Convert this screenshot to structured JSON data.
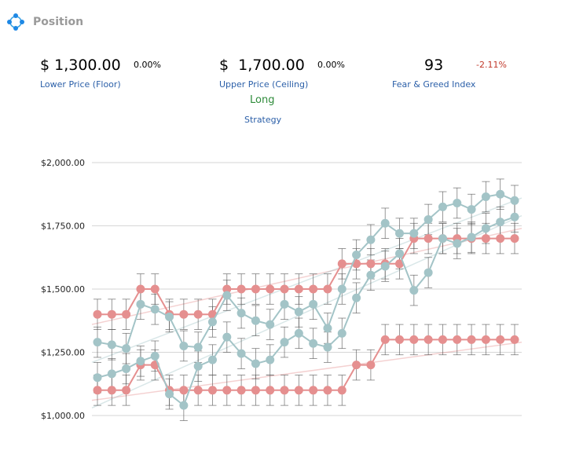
{
  "header": {
    "title": "Position",
    "icon": "network-nodes-icon"
  },
  "stats": {
    "lower": {
      "value": "$ 1,300.00",
      "change": "0.00%",
      "label": "Lower Price (Floor)"
    },
    "upper": {
      "value": "$  1,700.00",
      "change": "0.00%",
      "label": "Upper Price (Ceiling)"
    },
    "fear_greed": {
      "value": "93",
      "change": "-2.11%",
      "label": "Fear & Greed Index"
    },
    "strategy": {
      "value": "Long",
      "label": "Strategy"
    }
  },
  "colors": {
    "red_series": "#e58f8f",
    "teal_series": "#a3c4c7",
    "error_bar": "#555555",
    "gridline": "#d6d6d6",
    "positive_text": "#2e8b3a",
    "negative_text": "#c0392b",
    "label_text": "#2b5fa8"
  },
  "chart_data": {
    "type": "line",
    "x_count": 30,
    "ylim": [
      1000,
      2000
    ],
    "y_ticks": [
      1000,
      1250,
      1500,
      1750,
      2000
    ],
    "y_tick_labels": [
      "$1,000.00",
      "$1,250.00",
      "$1,500.00",
      "$1,750.00",
      "$2,000.00"
    ],
    "grid": "horizontal",
    "error_bar_half": 60,
    "series": [
      {
        "color_key": "red_series",
        "values": [
          1400,
          1400,
          1400,
          1500,
          1500,
          1400,
          1400,
          1400,
          1400,
          1500,
          1500,
          1500,
          1500,
          1500,
          1500,
          1500,
          1500,
          1600,
          1600,
          1600,
          1600,
          1600,
          1700,
          1700,
          1700,
          1700,
          1700,
          1700,
          1700,
          1700
        ]
      },
      {
        "color_key": "red_series",
        "values": [
          1100,
          1100,
          1100,
          1200,
          1200,
          1100,
          1100,
          1100,
          1100,
          1100,
          1100,
          1100,
          1100,
          1100,
          1100,
          1100,
          1100,
          1100,
          1200,
          1200,
          1300,
          1300,
          1300,
          1300,
          1300,
          1300,
          1300,
          1300,
          1300,
          1300
        ]
      },
      {
        "color_key": "teal_series",
        "values": [
          1290,
          1280,
          1265,
          1440,
          1420,
          1390,
          1275,
          1270,
          1370,
          1475,
          1405,
          1375,
          1360,
          1440,
          1410,
          1440,
          1345,
          1500,
          1635,
          1695,
          1760,
          1720,
          1720,
          1775,
          1825,
          1840,
          1815,
          1865,
          1875,
          1850
        ]
      },
      {
        "color_key": "teal_series",
        "values": [
          1150,
          1165,
          1185,
          1215,
          1235,
          1085,
          1040,
          1195,
          1220,
          1310,
          1245,
          1205,
          1220,
          1290,
          1325,
          1285,
          1270,
          1325,
          1465,
          1555,
          1590,
          1640,
          1495,
          1565,
          1700,
          1680,
          1705,
          1740,
          1765,
          1785
        ]
      }
    ],
    "trend_lines": [
      {
        "color_key": "red_series",
        "start": 1360,
        "end": 1740
      },
      {
        "color_key": "red_series",
        "start": 1060,
        "end": 1290
      },
      {
        "color_key": "teal_series",
        "start": 1210,
        "end": 1860
      },
      {
        "color_key": "teal_series",
        "start": 1030,
        "end": 1790
      }
    ]
  }
}
